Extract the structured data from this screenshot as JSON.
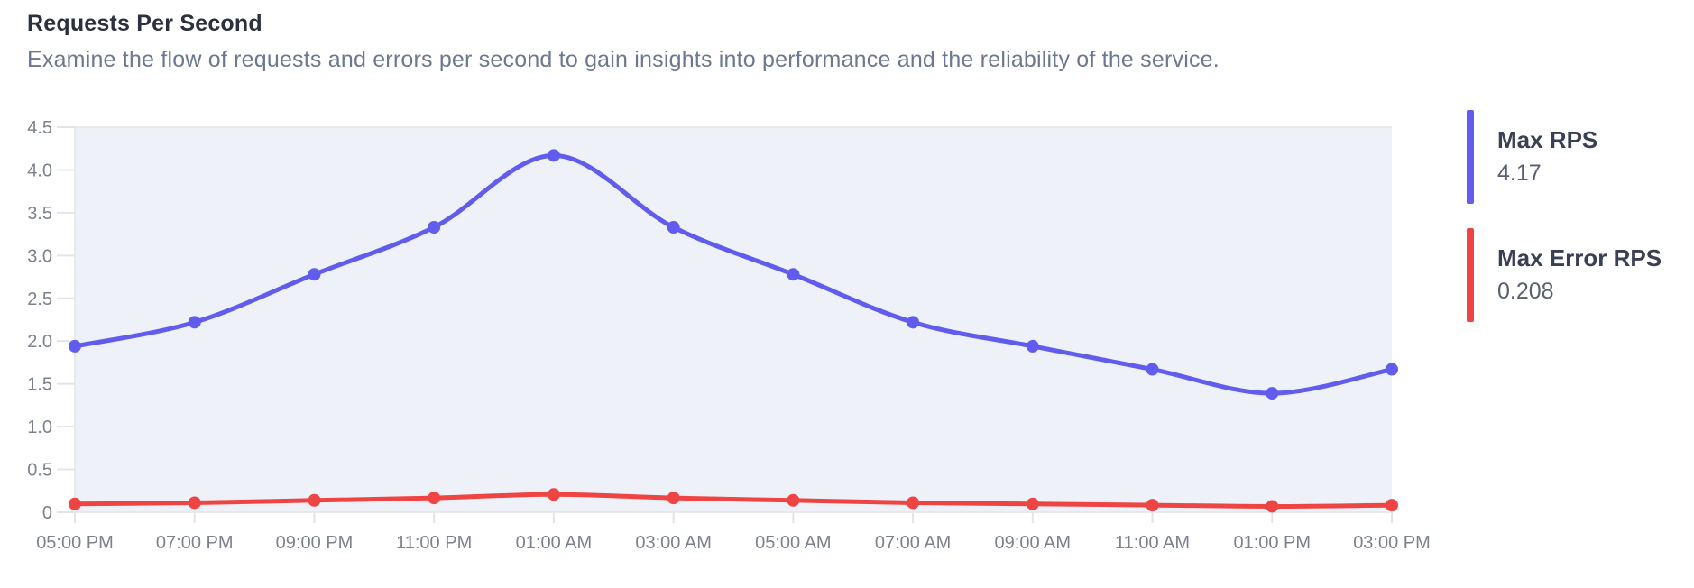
{
  "header": {
    "title": "Requests Per Second",
    "subtitle": "Examine the flow of requests and errors per second to gain insights into performance and the reliability of the service."
  },
  "legend": {
    "position": "right",
    "items": [
      {
        "label": "Max RPS",
        "value": "4.17",
        "color": "#615CEE"
      },
      {
        "label": "Max Error RPS",
        "value": "0.208",
        "color": "#EF4444"
      }
    ]
  },
  "chart_data": {
    "type": "line",
    "title": "Requests Per Second",
    "x": [
      "05:00 PM",
      "07:00 PM",
      "09:00 PM",
      "11:00 PM",
      "01:00 AM",
      "03:00 AM",
      "05:00 AM",
      "07:00 AM",
      "09:00 AM",
      "11:00 AM",
      "01:00 PM",
      "03:00 PM"
    ],
    "series": [
      {
        "name": "Max RPS",
        "color": "#615CEE",
        "max_shown": "4.17",
        "values": [
          1.94,
          2.22,
          2.78,
          3.33,
          4.17,
          3.33,
          2.78,
          2.22,
          1.94,
          1.67,
          1.39,
          1.67
        ]
      },
      {
        "name": "Max Error RPS",
        "color": "#EF4444",
        "max_shown": "0.208",
        "values": [
          0.097,
          0.111,
          0.139,
          0.167,
          0.208,
          0.167,
          0.139,
          0.111,
          0.097,
          0.083,
          0.069,
          0.083
        ]
      }
    ],
    "ylim": [
      0,
      4.5
    ],
    "ytick_labels": [
      "0",
      "0.5",
      "1.0",
      "1.5",
      "2.0",
      "2.5",
      "3.0",
      "3.5",
      "4.0",
      "4.5"
    ],
    "grid": false,
    "legend_position": "right",
    "plot_bg": "#EEF2F8",
    "axis_color": "#E2E4E8",
    "tick_label_color": "#7C828D",
    "point_radius": 7,
    "line_width": 5
  }
}
